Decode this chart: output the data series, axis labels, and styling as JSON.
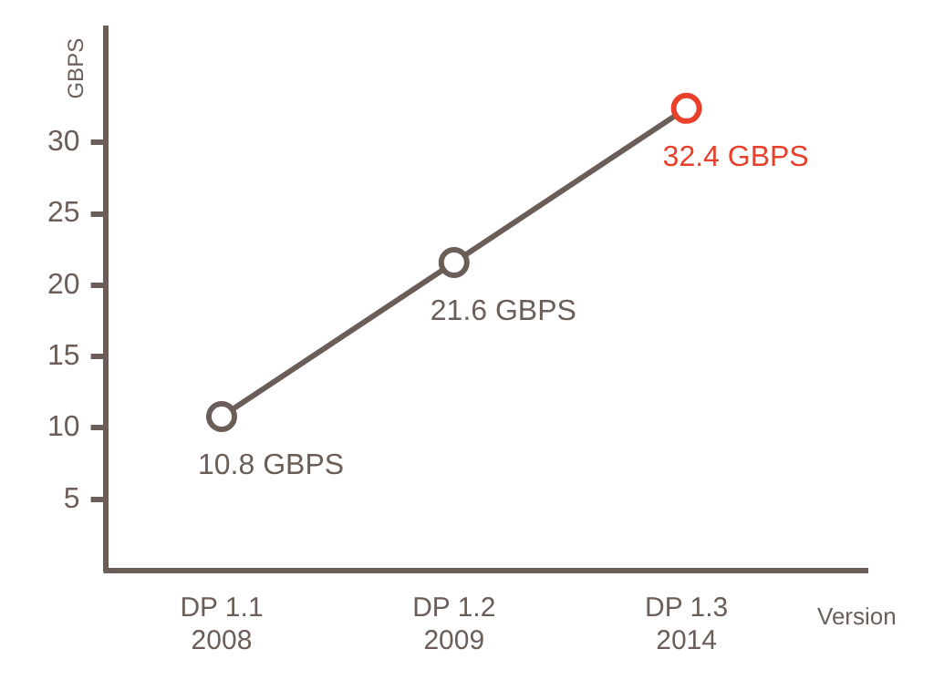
{
  "chart_data": {
    "type": "line",
    "xlabel": "Version",
    "ylabel": "GBPS",
    "categories": [
      "DP 1.1\n2008",
      "DP 1.2\n2009",
      "DP 1.3\n2014"
    ],
    "series": [
      {
        "color": "#6b5e58",
        "colors": [
          "#6b5e58",
          "#6b5e58",
          "#e8402a"
        ],
        "values": [
          10.8,
          21.6,
          32.4
        ],
        "value_labels": [
          "10.8 GBPS",
          "21.6 GBPS",
          "32.4 GBPS"
        ]
      }
    ],
    "ylim": [
      0,
      38
    ],
    "yticks": [
      5,
      10,
      15,
      20,
      25,
      30
    ],
    "grid": false,
    "legend": false,
    "marker": "circle",
    "line_style": "solid"
  }
}
